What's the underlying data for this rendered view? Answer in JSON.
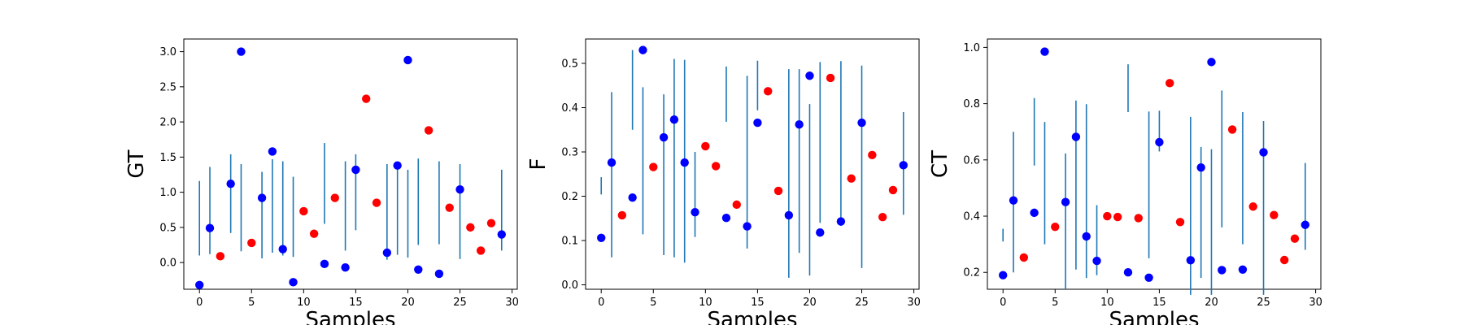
{
  "chart_data": [
    {
      "type": "scatter",
      "xlabel": "Samples",
      "ylabel": "GT",
      "xlim": [
        -1.5,
        30.5
      ],
      "ylim": [
        -0.38,
        3.18
      ],
      "xticks": [
        0,
        5,
        10,
        15,
        20,
        25,
        30
      ],
      "yticks": [
        0.0,
        0.5,
        1.0,
        1.5,
        2.0,
        2.5,
        3.0
      ],
      "ytick_labels": [
        "0.0",
        "0.5",
        "1.0",
        "1.5",
        "2.0",
        "2.5",
        "3.0"
      ],
      "grid": false,
      "series": [
        {
          "color": "#0000ff",
          "marker": "circle",
          "x": [
            0,
            1,
            3,
            4,
            6,
            7,
            8,
            9,
            12,
            14,
            15,
            18,
            19,
            20,
            21,
            23,
            25,
            29
          ],
          "y": [
            -0.32,
            0.49,
            1.12,
            3.0,
            0.92,
            1.58,
            0.19,
            -0.28,
            -0.02,
            -0.07,
            1.32,
            0.14,
            1.38,
            2.88,
            -0.1,
            -0.16,
            1.04,
            0.4
          ]
        },
        {
          "color": "#ff0000",
          "marker": "circle",
          "x": [
            2,
            5,
            10,
            11,
            13,
            16,
            17,
            22,
            24,
            26,
            27,
            28
          ],
          "y": [
            0.09,
            0.28,
            0.73,
            0.41,
            0.92,
            2.33,
            0.85,
            1.88,
            0.78,
            0.5,
            0.17,
            0.56
          ]
        },
        {
          "color": "#1f77b4",
          "marker": "vline",
          "x": [
            0,
            1,
            3,
            4,
            6,
            7,
            8,
            9,
            12,
            14,
            15,
            18,
            19,
            20,
            21,
            23,
            25,
            29
          ],
          "low": [
            0.1,
            0.12,
            0.42,
            0.16,
            0.06,
            0.14,
            0.1,
            0.08,
            0.55,
            0.17,
            0.46,
            0.04,
            0.11,
            0.07,
            0.25,
            0.26,
            0.05,
            0.17
          ],
          "high": [
            1.16,
            1.36,
            1.54,
            1.4,
            1.29,
            1.47,
            1.44,
            1.22,
            1.7,
            1.44,
            1.54,
            1.4,
            1.4,
            1.32,
            1.48,
            1.44,
            1.4,
            1.32
          ]
        }
      ]
    },
    {
      "type": "scatter",
      "xlabel": "Samples",
      "ylabel": "F",
      "xlim": [
        -1.5,
        30.5
      ],
      "ylim": [
        -0.01,
        0.555
      ],
      "xticks": [
        0,
        5,
        10,
        15,
        20,
        25,
        30
      ],
      "yticks": [
        0.0,
        0.1,
        0.2,
        0.3,
        0.4,
        0.5
      ],
      "ytick_labels": [
        "0.0",
        "0.1",
        "0.2",
        "0.3",
        "0.4",
        "0.5"
      ],
      "grid": false,
      "series": [
        {
          "color": "#0000ff",
          "marker": "circle",
          "x": [
            0,
            1,
            3,
            4,
            6,
            7,
            8,
            9,
            12,
            14,
            15,
            18,
            19,
            20,
            21,
            23,
            25,
            29
          ],
          "y": [
            0.106,
            0.276,
            0.197,
            0.53,
            0.333,
            0.373,
            0.276,
            0.164,
            0.151,
            0.132,
            0.366,
            0.157,
            0.362,
            0.472,
            0.118,
            0.143,
            0.366,
            0.27
          ]
        },
        {
          "color": "#ff0000",
          "marker": "circle",
          "x": [
            2,
            5,
            10,
            11,
            13,
            16,
            17,
            22,
            24,
            26,
            27,
            28
          ],
          "y": [
            0.157,
            0.266,
            0.313,
            0.268,
            0.181,
            0.437,
            0.212,
            0.467,
            0.24,
            0.293,
            0.153,
            0.214
          ]
        },
        {
          "color": "#1f77b4",
          "marker": "vline",
          "x": [
            0,
            1,
            3,
            4,
            6,
            7,
            8,
            9,
            12,
            14,
            15,
            18,
            19,
            20,
            21,
            23,
            25,
            29
          ],
          "low": [
            0.204,
            0.062,
            0.35,
            0.114,
            0.067,
            0.062,
            0.05,
            0.108,
            0.368,
            0.082,
            0.394,
            0.016,
            0.072,
            0.021,
            0.14,
            0.133,
            0.038,
            0.158
          ],
          "high": [
            0.243,
            0.435,
            0.53,
            0.446,
            0.43,
            0.51,
            0.508,
            0.3,
            0.493,
            0.472,
            0.506,
            0.487,
            0.487,
            0.408,
            0.503,
            0.505,
            0.495,
            0.39
          ]
        }
      ]
    },
    {
      "type": "scatter",
      "xlabel": "Samples",
      "ylabel": "CT",
      "xlim": [
        -1.5,
        30.5
      ],
      "ylim": [
        0.14,
        1.03
      ],
      "xticks": [
        0,
        5,
        10,
        15,
        20,
        25,
        30
      ],
      "yticks": [
        0.2,
        0.4,
        0.6,
        0.8,
        1.0
      ],
      "ytick_labels": [
        "0.2",
        "0.4",
        "0.6",
        "0.8",
        "1.0"
      ],
      "grid": false,
      "series": [
        {
          "color": "#0000ff",
          "marker": "circle",
          "x": [
            0,
            1,
            3,
            4,
            6,
            7,
            8,
            9,
            12,
            14,
            15,
            18,
            19,
            20,
            21,
            23,
            25,
            29
          ],
          "y": [
            0.19,
            0.456,
            0.412,
            0.985,
            0.45,
            0.682,
            0.328,
            0.241,
            0.2,
            0.181,
            0.663,
            0.243,
            0.573,
            0.948,
            0.208,
            0.21,
            0.627,
            0.369
          ]
        },
        {
          "color": "#ff0000",
          "marker": "circle",
          "x": [
            2,
            5,
            10,
            11,
            13,
            16,
            17,
            22,
            24,
            26,
            27,
            28
          ],
          "y": [
            0.253,
            0.362,
            0.4,
            0.397,
            0.393,
            0.873,
            0.379,
            0.708,
            0.434,
            0.404,
            0.244,
            0.32
          ]
        },
        {
          "color": "#1f77b4",
          "marker": "vline",
          "x": [
            0,
            1,
            3,
            4,
            6,
            7,
            8,
            9,
            12,
            14,
            15,
            18,
            19,
            20,
            21,
            23,
            25,
            29
          ],
          "low": [
            0.31,
            0.2,
            0.58,
            0.3,
            0.14,
            0.21,
            0.18,
            0.19,
            0.77,
            0.25,
            0.63,
            0.12,
            0.18,
            0.12,
            0.36,
            0.3,
            0.12,
            0.28
          ],
          "high": [
            0.355,
            0.7,
            0.82,
            0.735,
            0.623,
            0.811,
            0.798,
            0.439,
            0.94,
            0.772,
            0.775,
            0.753,
            0.646,
            0.638,
            0.847,
            0.77,
            0.738,
            0.589
          ]
        }
      ]
    }
  ]
}
